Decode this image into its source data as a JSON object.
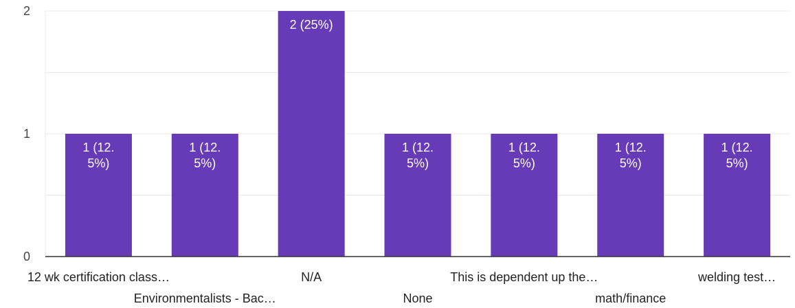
{
  "chart_data": {
    "type": "bar",
    "categories": [
      "12 wk certification class…",
      "Environmentalists - Bac…",
      "N/A",
      "None",
      "This is dependent up the…",
      "math/finance",
      "welding test…"
    ],
    "values": [
      1,
      1,
      2,
      1,
      1,
      1,
      1
    ],
    "data_labels": [
      [
        "1 (12.",
        "5%)"
      ],
      [
        "1 (12.",
        "5%)"
      ],
      [
        "2 (25%)"
      ],
      [
        "1 (12.",
        "5%)"
      ],
      [
        "1 (12.",
        "5%)"
      ],
      [
        "1 (12.",
        "5%)"
      ],
      [
        "1 (12.",
        "5%)"
      ]
    ],
    "ylim": [
      0,
      2
    ],
    "yticks": [
      "0",
      "1",
      "2"
    ],
    "grid": true,
    "bar_color": "#673ab7",
    "grid_color": "#e8e8e8",
    "axis_color": "#333333"
  }
}
